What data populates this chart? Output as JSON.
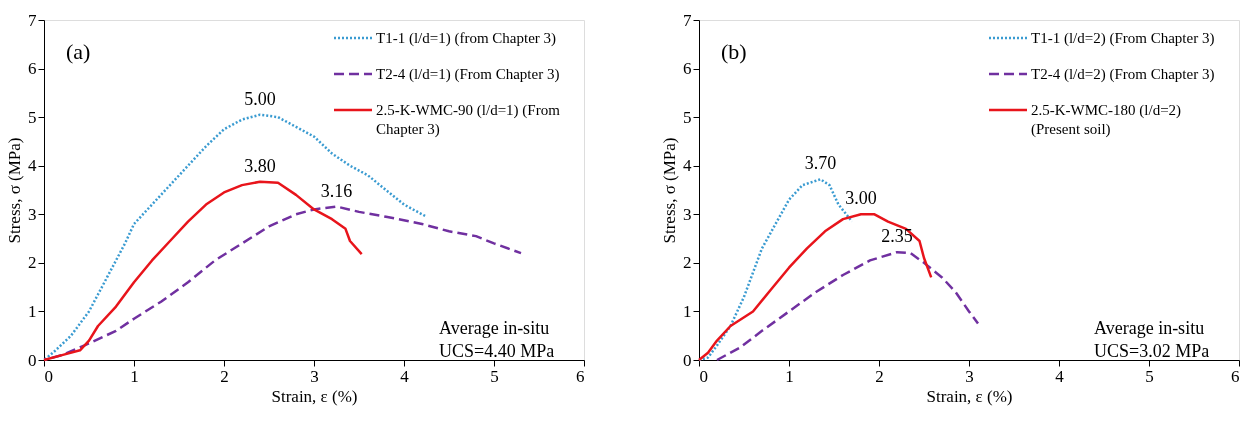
{
  "chart_data": [
    {
      "type": "line",
      "xlabel": "Strain, ε (%)",
      "ylabel": "Stress, σ (MPa)",
      "xlim": [
        0,
        6
      ],
      "ylim": [
        0,
        7
      ],
      "xticks": [
        0,
        1,
        2,
        3,
        4,
        5,
        6
      ],
      "yticks": [
        0,
        1,
        2,
        3,
        4,
        5,
        6,
        7
      ],
      "grid": false,
      "legend": "top right",
      "marker": "none",
      "annotations": [
        "(a)",
        "Average in-situ\nUCS=4.40 MPa",
        {
          "text": "5.00",
          "x": 2.4,
          "y": 5.05
        },
        {
          "text": "3.80",
          "x": 2.4,
          "y": 3.67
        },
        {
          "text": "3.16",
          "x": 3.25,
          "y": 3.16
        }
      ],
      "series": [
        {
          "name": "T1-1 (l/d=1) (from Chapter 3)",
          "color": "#3a9bd1",
          "line_style": "dotted",
          "x": [
            0,
            0.1,
            0.3,
            0.5,
            0.7,
            0.9,
            1.0,
            1.2,
            1.5,
            1.8,
            2.0,
            2.2,
            2.4,
            2.6,
            2.8,
            3.0,
            3.2,
            3.4,
            3.6,
            3.8,
            4.0,
            4.25
          ],
          "values": [
            0,
            0.15,
            0.5,
            1.0,
            1.7,
            2.4,
            2.8,
            3.2,
            3.8,
            4.4,
            4.75,
            4.95,
            5.05,
            5.0,
            4.8,
            4.6,
            4.25,
            4.0,
            3.8,
            3.5,
            3.2,
            2.95
          ]
        },
        {
          "name": "T2-4 (l/d=1) (From Chapter 3)",
          "color": "#7030a0",
          "line_style": "dashed",
          "x": [
            0,
            0.2,
            0.45,
            0.8,
            1.0,
            1.3,
            1.6,
            1.9,
            2.2,
            2.5,
            2.8,
            3.0,
            3.25,
            3.5,
            3.8,
            4.2,
            4.5,
            4.8,
            5.0,
            5.3
          ],
          "values": [
            0,
            0.1,
            0.3,
            0.6,
            0.85,
            1.2,
            1.6,
            2.05,
            2.4,
            2.75,
            3.0,
            3.1,
            3.16,
            3.05,
            2.95,
            2.8,
            2.65,
            2.55,
            2.4,
            2.2
          ]
        },
        {
          "name": "2.5-K-WMC-90 (l/d=1) (From Chapter 3)",
          "color": "#e8141b",
          "line_style": "solid",
          "x": [
            0,
            0.2,
            0.4,
            0.5,
            0.6,
            0.8,
            1.0,
            1.2,
            1.4,
            1.6,
            1.8,
            2.0,
            2.2,
            2.4,
            2.6,
            2.8,
            3.0,
            3.2,
            3.35,
            3.4,
            3.53
          ],
          "values": [
            0,
            0.1,
            0.2,
            0.4,
            0.7,
            1.1,
            1.6,
            2.05,
            2.45,
            2.85,
            3.2,
            3.45,
            3.6,
            3.67,
            3.65,
            3.4,
            3.1,
            2.9,
            2.7,
            2.45,
            2.18
          ]
        }
      ]
    },
    {
      "type": "line",
      "xlabel": "Strain, ε (%)",
      "ylabel": "Stress, σ (MPa)",
      "xlim": [
        0,
        6
      ],
      "ylim": [
        0,
        7
      ],
      "xticks": [
        0,
        1,
        2,
        3,
        4,
        5,
        6
      ],
      "yticks": [
        0,
        1,
        2,
        3,
        4,
        5,
        6,
        7
      ],
      "grid": false,
      "legend": "top right",
      "marker": "none",
      "annotations": [
        "(b)",
        "Average in-situ\nUCS=3.02 MPa",
        {
          "text": "3.70",
          "x": 1.35,
          "y": 3.72
        },
        {
          "text": "3.00",
          "x": 1.8,
          "y": 3.0
        },
        {
          "text": "2.35",
          "x": 2.2,
          "y": 2.22
        }
      ],
      "series": [
        {
          "name": "T1-1 (l/d=2) (From Chapter 3)",
          "color": "#3a9bd1",
          "line_style": "dotted",
          "x": [
            0,
            0.1,
            0.2,
            0.35,
            0.5,
            0.6,
            0.7,
            0.85,
            1.0,
            1.15,
            1.35,
            1.45,
            1.55,
            1.7
          ],
          "values": [
            0,
            0.05,
            0.3,
            0.7,
            1.3,
            1.8,
            2.3,
            2.8,
            3.3,
            3.6,
            3.72,
            3.6,
            3.2,
            2.85
          ]
        },
        {
          "name": "T2-4 (l/d=2) (From Chapter 3)",
          "color": "#7030a0",
          "line_style": "dashed",
          "x": [
            0.2,
            0.45,
            0.7,
            1.0,
            1.3,
            1.6,
            1.9,
            2.2,
            2.35,
            2.5,
            2.7,
            2.85,
            3.0,
            3.1
          ],
          "values": [
            0,
            0.25,
            0.6,
            1.0,
            1.4,
            1.75,
            2.05,
            2.22,
            2.2,
            2.0,
            1.7,
            1.4,
            1.0,
            0.75
          ]
        },
        {
          "name": "2.5-K-WMC-180 (l/d=2) (Present soil)",
          "color": "#e8141b",
          "line_style": "solid",
          "x": [
            0,
            0.1,
            0.2,
            0.35,
            0.6,
            0.8,
            1.0,
            1.2,
            1.4,
            1.6,
            1.8,
            1.95,
            2.1,
            2.3,
            2.45,
            2.5,
            2.58
          ],
          "values": [
            0,
            0.15,
            0.4,
            0.7,
            1.0,
            1.45,
            1.9,
            2.3,
            2.65,
            2.9,
            3.0,
            3.0,
            2.85,
            2.7,
            2.45,
            2.1,
            1.7
          ]
        }
      ]
    }
  ]
}
